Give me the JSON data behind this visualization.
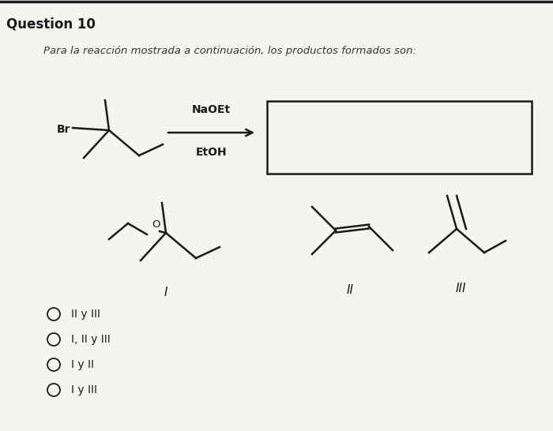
{
  "title": "Question 10",
  "subtitle": "Para la reacción mostrada a continuación, los productos formados son:",
  "bg_color": "#f5f4f0",
  "line_color": "#1a1a1a",
  "choices": [
    "II y III",
    "I, II y III",
    "I y II",
    "I y III"
  ],
  "reagent_line1": "NaOEt",
  "reagent_line2": "EtOH",
  "label_I": "I",
  "label_II": "II",
  "label_III": "III"
}
